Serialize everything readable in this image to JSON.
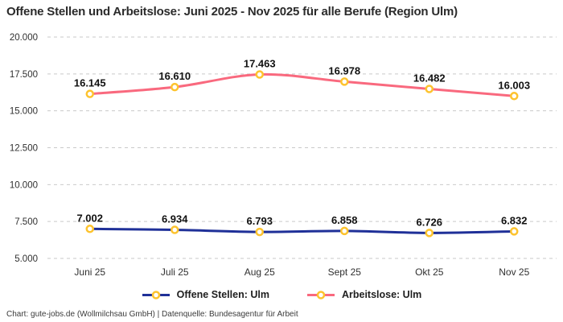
{
  "title": "Offene Stellen und Arbeitslose: Juni 2025 - Nov 2025 für alle Berufe (Region Ulm)",
  "footer": "Chart: gute-jobs.de (Wollmilchsau GmbH) | Datenquelle: Bundesagentur für Arbeit",
  "colors": {
    "offene_stellen": "#1F3098",
    "arbeitslose": "#F9697E",
    "marker_ring": "#FDC32E",
    "marker_fill": "#FFFFFF",
    "grid": "#C9C9C9",
    "title_text": "#2B2B2B",
    "data_label_text": "#111111",
    "axis_text": "#303030"
  },
  "chart_data": {
    "type": "line",
    "title": "Offene Stellen und Arbeitslose: Juni 2025 - Nov 2025 für alle Berufe (Region Ulm)",
    "categories": [
      "Juni 25",
      "Juli 25",
      "Aug 25",
      "Sept 25",
      "Okt 25",
      "Nov 25"
    ],
    "series": [
      {
        "name": "Offene Stellen: Ulm",
        "key": "offene-stellen",
        "color_key": "offene_stellen",
        "values": [
          7002,
          6934,
          6793,
          6858,
          6726,
          6832
        ],
        "value_labels": [
          "7.002",
          "6.934",
          "6.793",
          "6.858",
          "6.726",
          "6.832"
        ]
      },
      {
        "name": "Arbeitslose: Ulm",
        "key": "arbeitslose",
        "color_key": "arbeitslose",
        "values": [
          16145,
          16610,
          17463,
          16978,
          16482,
          16003
        ],
        "value_labels": [
          "16.145",
          "16.610",
          "17.463",
          "16.978",
          "16.482",
          "16.003"
        ]
      }
    ],
    "y_ticks": [
      {
        "value": 20000,
        "label": "20.000"
      },
      {
        "value": 17500,
        "label": "17.500"
      },
      {
        "value": 15000,
        "label": "15.000"
      },
      {
        "value": 12500,
        "label": "12.500"
      },
      {
        "value": 10000,
        "label": "10.000"
      },
      {
        "value": 7500,
        "label": "7.500"
      },
      {
        "value": 5000,
        "label": "5.000"
      }
    ],
    "ylim": [
      5000,
      20000
    ],
    "xlabel": "",
    "ylabel": "",
    "grid": "dashed-horizontal",
    "legend_position": "bottom",
    "marker_style": "ring"
  }
}
